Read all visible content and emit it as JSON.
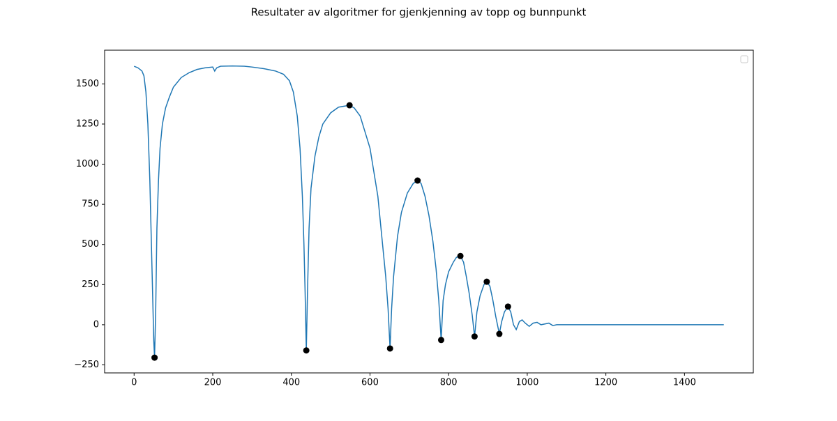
{
  "chart_data": {
    "type": "line",
    "title": "Resultater av algoritmer for gjenkjenning av topp og bunnpunkt",
    "xlim": [
      -75,
      1575
    ],
    "xticks": [
      0,
      200,
      400,
      600,
      800,
      1000,
      1200,
      1400
    ],
    "ylim": [
      -300,
      1710
    ],
    "yticks": [
      {
        "value": -250,
        "label": "−250"
      },
      0,
      250,
      500,
      750,
      1000,
      1250,
      1500
    ],
    "legend": "upper right",
    "series": [
      {
        "kind": "line",
        "color": "#1f77b4",
        "x": [
          0,
          10,
          20,
          25,
          30,
          35,
          40,
          45,
          50,
          52,
          55,
          58,
          62,
          66,
          72,
          80,
          90,
          100,
          120,
          140,
          160,
          180,
          200,
          205,
          210,
          220,
          250,
          280,
          300,
          330,
          360,
          380,
          395,
          405,
          415,
          422,
          428,
          432,
          435,
          438,
          441,
          445,
          450,
          460,
          470,
          480,
          500,
          520,
          548,
          560,
          575,
          590,
          600,
          610,
          620,
          630,
          640,
          646,
          651,
          655,
          660,
          670,
          680,
          695,
          710,
          721,
          730,
          740,
          750,
          760,
          768,
          775,
          781,
          786,
          792,
          800,
          812,
          820,
          830,
          838,
          845,
          852,
          860,
          866,
          872,
          880,
          890,
          897,
          905,
          912,
          920,
          929,
          935,
          942,
          951,
          958,
          965,
          972,
          980,
          987,
          995,
          1005,
          1015,
          1025,
          1035,
          1045,
          1055,
          1065,
          1075,
          1085,
          1200,
          1500
        ],
        "values": [
          1610,
          1600,
          1580,
          1550,
          1450,
          1250,
          900,
          400,
          -100,
          -205,
          100,
          600,
          900,
          1100,
          1250,
          1350,
          1420,
          1480,
          1540,
          1570,
          1590,
          1600,
          1605,
          1580,
          1600,
          1610,
          1612,
          1610,
          1605,
          1595,
          1580,
          1560,
          1520,
          1450,
          1300,
          1100,
          800,
          500,
          200,
          -160,
          200,
          600,
          850,
          1050,
          1170,
          1250,
          1320,
          1355,
          1367,
          1350,
          1300,
          1180,
          1100,
          950,
          800,
          550,
          300,
          100,
          -148,
          100,
          300,
          550,
          700,
          820,
          880,
          898,
          880,
          800,
          680,
          520,
          350,
          150,
          -95,
          150,
          250,
          330,
          390,
          420,
          428,
          390,
          300,
          200,
          60,
          -73,
          80,
          180,
          250,
          268,
          240,
          160,
          50,
          -57,
          20,
          80,
          113,
          80,
          0,
          -30,
          20,
          30,
          10,
          -10,
          10,
          15,
          0,
          5,
          10,
          -5,
          0,
          0,
          0,
          0
        ]
      },
      {
        "kind": "markers",
        "color": "#000000",
        "x": [
          52,
          438,
          548,
          651,
          721,
          781,
          830,
          866,
          897,
          929,
          951
        ],
        "values": [
          -205,
          -160,
          1367,
          -148,
          898,
          -95,
          428,
          -73,
          268,
          -57,
          113
        ]
      }
    ]
  }
}
